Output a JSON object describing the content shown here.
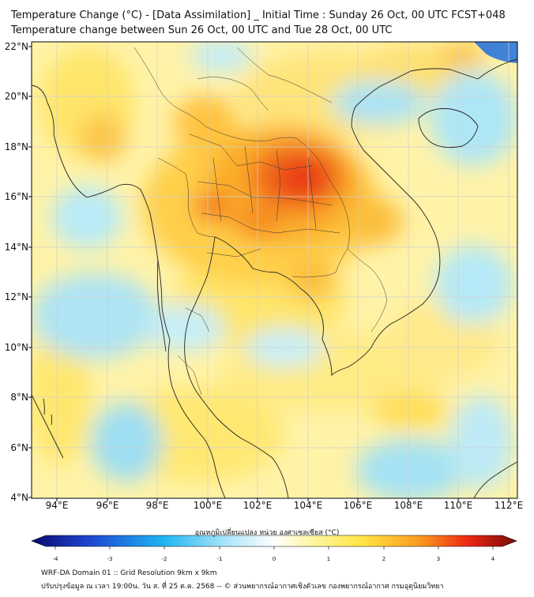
{
  "header": {
    "title_line1": "Temperature Change (°C) - [Data Assimilation] _ Initial Time : Sunday 26 Oct, 00 UTC FCST+048",
    "title_line2": "Temperature change between Sun 26 Oct, 00 UTC and Tue 28 Oct, 00 UTC"
  },
  "map": {
    "lat_labels": [
      "22°N",
      "20°N",
      "18°N",
      "16°N",
      "14°N",
      "12°N",
      "10°N",
      "8°N",
      "6°N",
      "4°N"
    ],
    "lon_labels": [
      "94°E",
      "96°E",
      "98°E",
      "100°E",
      "102°E",
      "104°E",
      "106°E",
      "108°E",
      "110°E",
      "112°E"
    ]
  },
  "colorbar": {
    "title": "อุณหภูมิเปลี่ยนแปลง หน่วย องศาเซลเซียส (°C)",
    "ticks": [
      "-4",
      "-3",
      "-2",
      "-1",
      "0",
      "1",
      "2",
      "3",
      "4"
    ],
    "colors": {
      "cold_extreme": "#0a0a6e",
      "cold_blue": "#1e46d2",
      "cyan": "#1eb4f0",
      "light_cyan": "#a8e6fa",
      "near_zero": "#ffffff",
      "light_yellow": "#fff5a0",
      "yellow": "#ffe646",
      "orange": "#fa9b1e",
      "red": "#eb2814",
      "dark_red": "#780a0a"
    }
  },
  "footer": {
    "line1": "WRF-DA Domain 01 :: Grid Resolution 9km x 9km",
    "line2": "ปรับปรุงข้อมูล ณ เวลา 19:00น. วัน ส. ที่ 25 ต.ค. 2568 -- © ส่วนพยากรณ์อากาศเชิงตัวเลข กองพยากรณ์อากาศ กรมอุตุนิยมวิทยา"
  }
}
